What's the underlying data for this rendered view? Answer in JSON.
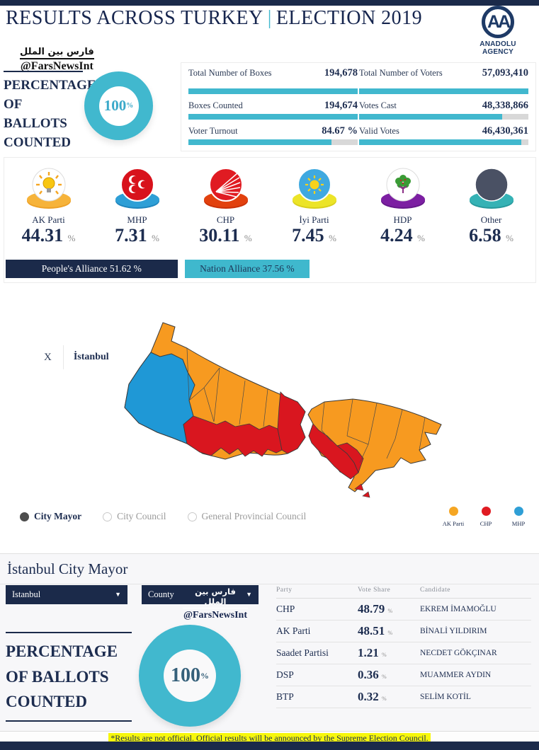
{
  "theme": {
    "navy": "#1b2a4a",
    "teal": "#41b8ce",
    "track_gray": "#d8d8d8",
    "section_bg": "#f7f7f9",
    "highlight_yellow": "#f7f70c",
    "map_orange": "#f79a20",
    "map_red": "#d9161f",
    "map_blue": "#1f98d6"
  },
  "header": {
    "title_part1": "RESULTS ACROSS TURKEY",
    "divider": "|",
    "title_part2": "ELECTION 2019",
    "logo_text": "AA",
    "logo_agency": "ANADOLU AGENCY"
  },
  "watermark": {
    "arabic": "فارس بين الملل",
    "handle": "@FarsNewsInt"
  },
  "ballots_top": {
    "label": "PERCENTAGE OF BALLOTS COUNTED",
    "value": "100",
    "unit": "%"
  },
  "stats": {
    "left": [
      {
        "label": "Total Number of Boxes",
        "value": "194,678",
        "pct": 100
      },
      {
        "label": "Boxes Counted",
        "value": "194,674",
        "pct": 100
      },
      {
        "label": "Voter Turnout",
        "value": "84.67 %",
        "pct": 84.67
      }
    ],
    "right": [
      {
        "label": "Total Number of Voters",
        "value": "57,093,410",
        "pct": 100
      },
      {
        "label": "Votes Cast",
        "value": "48,338,866",
        "pct": 84.7
      },
      {
        "label": "Valid Votes",
        "value": "46,430,361",
        "pct": 96
      }
    ]
  },
  "parties": [
    {
      "name": "AK Parti",
      "value": "44.31",
      "unit": "%",
      "icon": "ak-parti-lightbulb-logo",
      "base_color": "#eda127"
    },
    {
      "name": "MHP",
      "value": "7.31",
      "unit": "%",
      "icon": "mhp-crescents-logo",
      "base_color": "#2e9fd6"
    },
    {
      "name": "CHP",
      "value": "30.11",
      "unit": "%",
      "icon": "chp-rays-logo",
      "base_color": "#e2410e"
    },
    {
      "name": "İyi Parti",
      "value": "7.45",
      "unit": "%",
      "icon": "iyi-parti-sun-logo",
      "base_color": "#ece428"
    },
    {
      "name": "HDP",
      "value": "4.24",
      "unit": "%",
      "icon": "hdp-tree-logo",
      "base_color": "#7c1fa2"
    },
    {
      "name": "Other",
      "value": "6.58",
      "unit": "%",
      "icon": "other-circle",
      "base_color": "#35b2b5"
    }
  ],
  "alliances": [
    {
      "label": "People's Alliance 51.62 %",
      "pct": 51.62,
      "color": "#1b2a4a"
    },
    {
      "label": "Nation Alliance 37.56 %",
      "pct": 37.56,
      "color": "#3fb8cd"
    }
  ],
  "map": {
    "close_label": "X",
    "province_label": "İstanbul",
    "modes": [
      {
        "label": "City Mayor",
        "selected": true
      },
      {
        "label": "City Council",
        "selected": false
      },
      {
        "label": "General Provincial Council",
        "selected": false
      }
    ],
    "legend": [
      {
        "label": "AK Parti",
        "color": "#f5a623"
      },
      {
        "label": "CHP",
        "color": "#e01b22"
      },
      {
        "label": "MHP",
        "color": "#2f9fd6"
      }
    ]
  },
  "mayor": {
    "title": "İstanbul City Mayor",
    "province_value": "Istanbul",
    "county_value": "County",
    "watermark": {
      "arabic": "فارس بين الملل",
      "handle": "@FarsNewsInt"
    },
    "table": {
      "headers": [
        "Party",
        "Vote Share",
        "Candidate"
      ],
      "rows": [
        {
          "party": "CHP",
          "share": "48.79",
          "unit": "%",
          "candidate": "EKREM İMAMOĞLU"
        },
        {
          "party": "AK Parti",
          "share": "48.51",
          "unit": "%",
          "candidate": "BİNALİ YILDIRIM"
        },
        {
          "party": "Saadet Partisi",
          "share": "1.21",
          "unit": "%",
          "candidate": "NECDET GÖKÇINAR"
        },
        {
          "party": "DSP",
          "share": "0.36",
          "unit": "%",
          "candidate": "MUAMMER AYDIN"
        },
        {
          "party": "BTP",
          "share": "0.32",
          "unit": "%",
          "candidate": "SELİM KOTİL"
        }
      ]
    },
    "ballots": {
      "label": "PERCENTAGE OF BALLOTS COUNTED",
      "value": "100",
      "unit": "%"
    }
  },
  "footer": {
    "note": "*Results are not official. Official results will be announced by the Supreme Election Council."
  }
}
